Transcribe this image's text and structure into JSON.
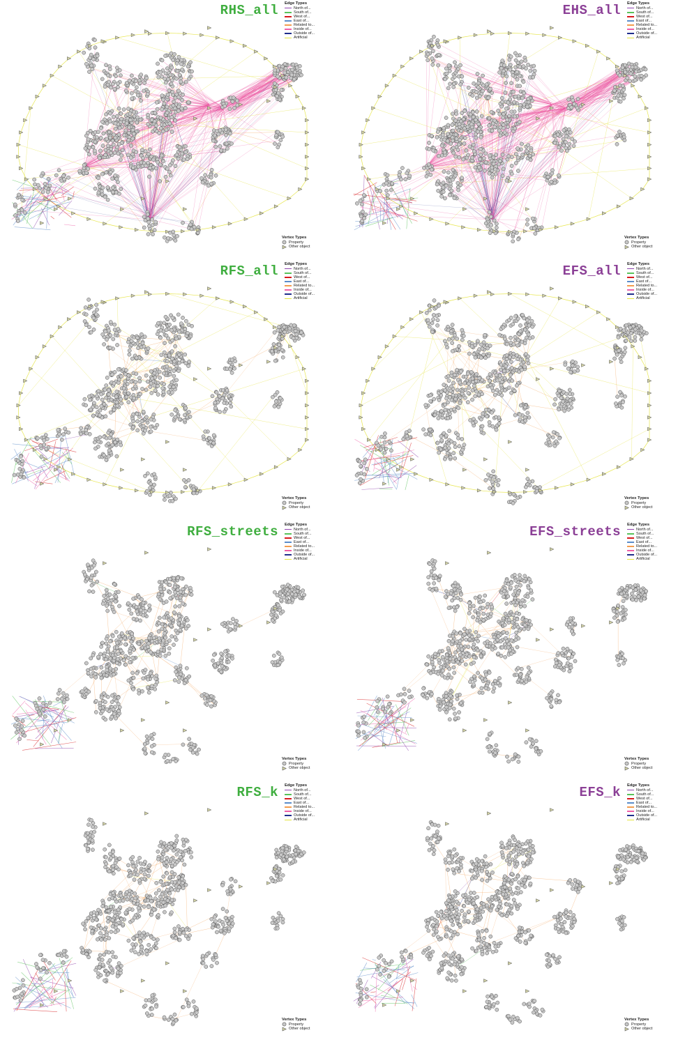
{
  "colors": {
    "title_real": "#3fae3f",
    "title_estimated": "#8b3f96",
    "vertex_fill": "#c8c8c8",
    "vertex_stroke": "#555555",
    "object_fill": "#d2d2a4"
  },
  "legend": {
    "edge_title": "Edge Types",
    "edges": [
      {
        "label": "North of...",
        "color": "#8e44ad"
      },
      {
        "label": "South of...",
        "color": "#59c25a"
      },
      {
        "label": "West of...",
        "color": "#d7191c"
      },
      {
        "label": "East of...",
        "color": "#5b8cc9"
      },
      {
        "label": "Related to...",
        "color": "#f39c4f"
      },
      {
        "label": "Inside of...",
        "color": "#ee5fa7"
      },
      {
        "label": "Outside of...",
        "color": "#1f2d8a"
      },
      {
        "label": "Artificial",
        "color": "#e4e33a"
      }
    ],
    "vertex_title": "Vertex Types",
    "vertices": [
      {
        "label": "Property",
        "icon": "circle-icon"
      },
      {
        "label": "Other object",
        "icon": "triangle-icon"
      }
    ]
  },
  "panels": [
    {
      "id": "RHS_all",
      "title": "RHS_all",
      "color_key": "title_real",
      "variant": "hs"
    },
    {
      "id": "EHS_all",
      "title": "EHS_all",
      "color_key": "title_estimated",
      "variant": "hs"
    },
    {
      "id": "RFS_all",
      "title": "RFS_all",
      "color_key": "title_real",
      "variant": "fs"
    },
    {
      "id": "EFS_all",
      "title": "EFS_all",
      "color_key": "title_estimated",
      "variant": "fs"
    },
    {
      "id": "RFS_streets",
      "title": "RFS_streets",
      "color_key": "title_real",
      "variant": "streets"
    },
    {
      "id": "EFS_streets",
      "title": "EFS_streets",
      "color_key": "title_estimated",
      "variant": "streets"
    },
    {
      "id": "RFS_k",
      "title": "RFS_k",
      "color_key": "title_real",
      "variant": "k"
    },
    {
      "id": "EFS_k",
      "title": "EFS_k",
      "color_key": "title_estimated",
      "variant": "k"
    }
  ]
}
